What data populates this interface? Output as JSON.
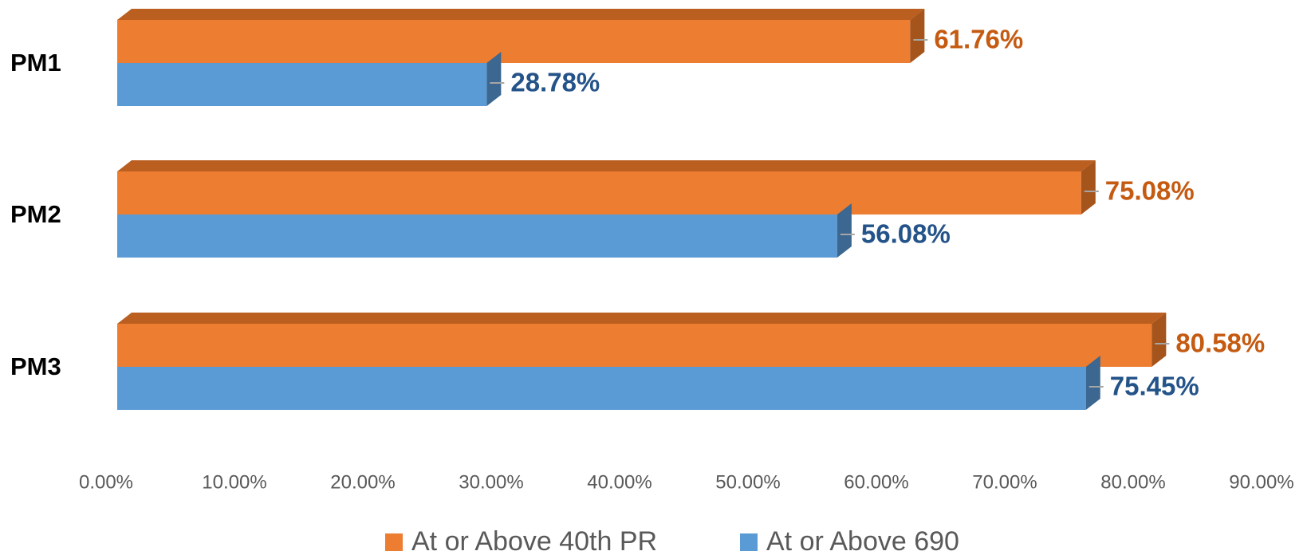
{
  "chart_data": {
    "type": "bar3d_horizontal",
    "categories": [
      "PM1",
      "PM2",
      "PM3"
    ],
    "series": [
      {
        "name": "At or Above 40th PR",
        "color": "#ED7D31",
        "top_color": "#BA5F20",
        "side_color": "#A5541B",
        "label_color": "#C55A11",
        "values": [
          61.76,
          75.08,
          80.58
        ],
        "value_labels": [
          "61.76%",
          "75.08%",
          "80.58%"
        ]
      },
      {
        "name": "At or Above 690",
        "color": "#5B9BD5",
        "top_color": "#4A7DAD",
        "side_color": "#3B6790",
        "label_color": "#245389",
        "values": [
          28.78,
          56.08,
          75.45
        ],
        "value_labels": [
          "28.78%",
          "56.08%",
          "75.45%"
        ]
      }
    ],
    "xlim": [
      0,
      90
    ],
    "xticks": [
      {
        "value": 0,
        "label": "0.00%"
      },
      {
        "value": 10,
        "label": "10.00%"
      },
      {
        "value": 20,
        "label": "20.00%"
      },
      {
        "value": 30,
        "label": "30.00%"
      },
      {
        "value": 40,
        "label": "40.00%"
      },
      {
        "value": 50,
        "label": "50.00%"
      },
      {
        "value": 60,
        "label": "60.00%"
      },
      {
        "value": 70,
        "label": "70.00%"
      },
      {
        "value": 80,
        "label": "80.00%"
      },
      {
        "value": 90,
        "label": "90.00%"
      }
    ],
    "grid": false,
    "legend": "bottom"
  }
}
